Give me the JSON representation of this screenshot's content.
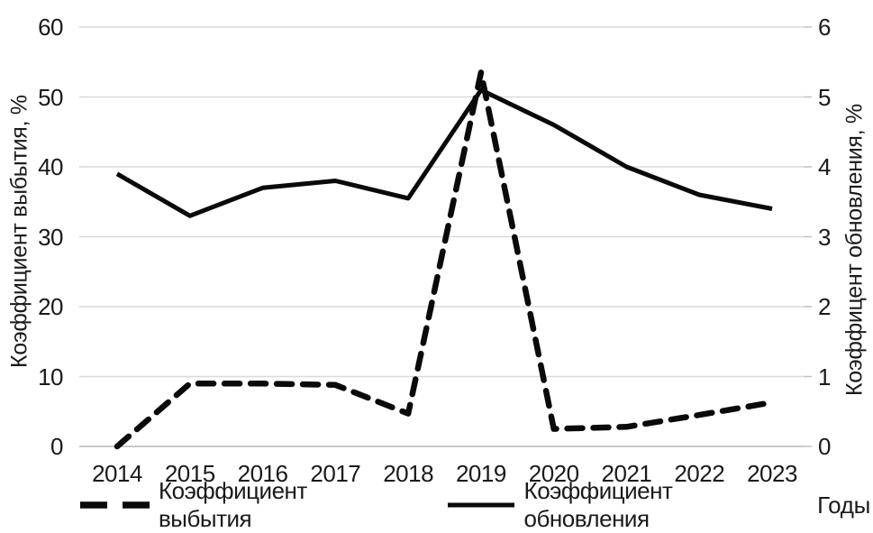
{
  "chart_data": {
    "type": "line",
    "title": "",
    "x": [
      2014,
      2015,
      2016,
      2017,
      2018,
      2019,
      2020,
      2021,
      2022,
      2023
    ],
    "xlabel": "Годы",
    "series": [
      {
        "name": "Коэффициент выбытия",
        "axis": "left",
        "line_style": "dashed",
        "color": "#000000",
        "values": [
          0,
          9,
          9,
          8.8,
          4.7,
          53.5,
          2.5,
          2.8,
          4.5,
          6.3
        ]
      },
      {
        "name": "Коэффициент обновления",
        "axis": "right",
        "line_style": "solid",
        "color": "#000000",
        "values": [
          3.9,
          3.3,
          3.7,
          3.8,
          3.55,
          5.1,
          4.6,
          4.0,
          3.6,
          3.4
        ]
      }
    ],
    "left_axis": {
      "label": "Коэффициент выбытия, %",
      "ticks": [
        0,
        10,
        20,
        30,
        40,
        50,
        60
      ],
      "range": [
        0,
        60
      ]
    },
    "right_axis": {
      "label": "Коэффицент обновления, %",
      "ticks": [
        0,
        1,
        2,
        3,
        4,
        5,
        6
      ],
      "range": [
        0,
        6
      ]
    },
    "grid": true,
    "legend_position": "bottom",
    "background": "#ffffff",
    "grid_color": "#d9d9d9",
    "baseline_color": "#c8c8c8",
    "line_color": "#0a0a0a",
    "text_color": "#1a1a1a"
  }
}
